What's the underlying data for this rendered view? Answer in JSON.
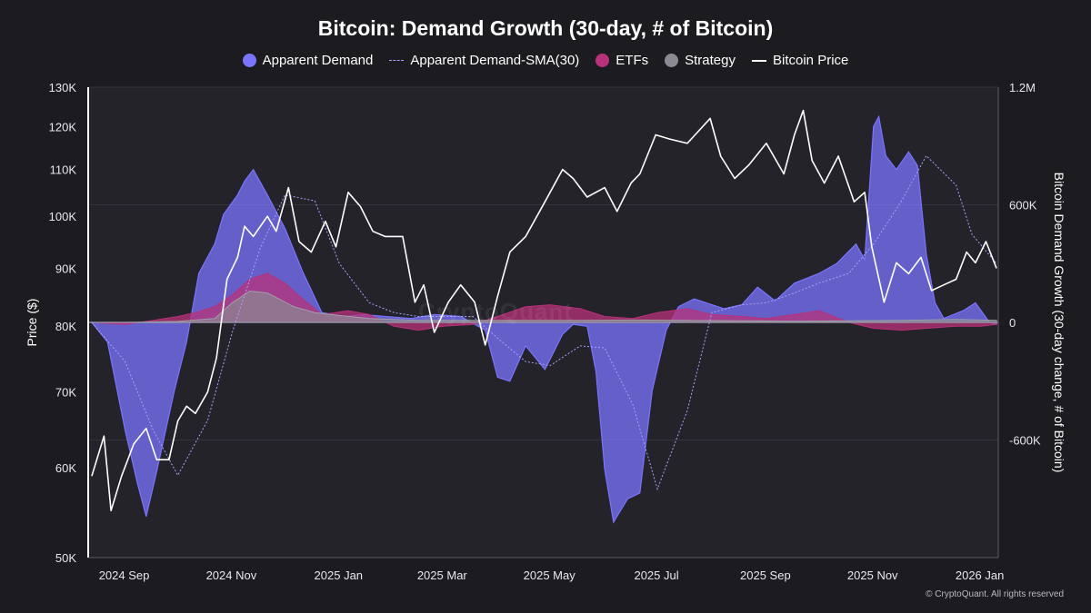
{
  "chart_data": {
    "type": "area",
    "title": "Bitcoin: Demand Growth (30-day, # of Bitcoin)",
    "ylabel_left": "Price ($)",
    "ylabel_right": "Bitcoin Demand Growth (30-day change, # of Bitcoin)",
    "left_axis": {
      "scale": "log",
      "range": [
        50000,
        130000
      ],
      "ticks": [
        50000,
        60000,
        70000,
        80000,
        90000,
        100000,
        110000,
        120000,
        130000
      ],
      "tick_labels": [
        "50K",
        "60K",
        "70K",
        "80K",
        "90K",
        "100K",
        "110K",
        "120K",
        "130K"
      ]
    },
    "right_axis": {
      "scale": "linear",
      "range": [
        -1200000,
        1200000
      ],
      "ticks": [
        -600000,
        0,
        600000,
        1200000
      ],
      "tick_labels": [
        "-600K",
        "0",
        "600K",
        "1.2M"
      ]
    },
    "x_axis": {
      "range": [
        "2024-08-25",
        "2026-01-25"
      ],
      "ticks": [
        "2024-09-01",
        "2024-11-01",
        "2025-01-01",
        "2025-03-01",
        "2025-05-01",
        "2025-07-01",
        "2025-09-01",
        "2025-11-01",
        "2026-01-01"
      ],
      "tick_labels": [
        "2024 Sep",
        "2024 Nov",
        "2025 Jan",
        "2025 Mar",
        "2025 May",
        "2025 Jul",
        "2025 Sep",
        "2025 Nov",
        "2026 Jan"
      ]
    },
    "grid": true,
    "legend_position": "top-center",
    "legend": [
      "Apparent Demand",
      "Apparent Demand-SMA(30)",
      "ETFs",
      "Strategy",
      "Bitcoin Price"
    ],
    "series": [
      {
        "name": "Apparent Demand",
        "axis": "right",
        "style": "area",
        "color": "#7b74ff",
        "x": [
          "2024-08-27",
          "2024-09-05",
          "2024-09-15",
          "2024-09-22",
          "2024-09-27",
          "2024-10-03",
          "2024-10-13",
          "2024-10-20",
          "2024-10-27",
          "2024-11-05",
          "2024-11-10",
          "2024-11-18",
          "2024-11-22",
          "2024-11-27",
          "2024-12-05",
          "2024-12-15",
          "2024-12-25",
          "2025-01-05",
          "2025-01-18",
          "2025-01-28",
          "2025-02-10",
          "2025-02-25",
          "2025-03-10",
          "2025-03-25",
          "2025-04-08",
          "2025-04-15",
          "2025-04-22",
          "2025-05-01",
          "2025-05-12",
          "2025-05-22",
          "2025-05-28",
          "2025-06-05",
          "2025-06-10",
          "2025-06-15",
          "2025-06-20",
          "2025-06-28",
          "2025-07-05",
          "2025-07-12",
          "2025-07-20",
          "2025-07-27",
          "2025-08-05",
          "2025-08-15",
          "2025-08-22",
          "2025-09-01",
          "2025-09-10",
          "2025-09-20",
          "2025-10-01",
          "2025-10-15",
          "2025-10-25",
          "2025-11-05",
          "2025-11-10",
          "2025-11-15",
          "2025-11-18",
          "2025-11-22",
          "2025-11-28",
          "2025-12-05",
          "2025-12-10",
          "2025-12-15",
          "2025-12-20",
          "2025-12-25",
          "2026-01-05",
          "2026-01-12",
          "2026-01-20",
          "2026-01-24"
        ],
        "values": [
          0,
          -100000,
          -550000,
          -820000,
          -990000,
          -760000,
          -350000,
          -100000,
          250000,
          400000,
          550000,
          650000,
          720000,
          780000,
          650000,
          480000,
          260000,
          50000,
          30000,
          40000,
          30000,
          20000,
          40000,
          30000,
          -40000,
          -280000,
          -300000,
          -120000,
          -240000,
          -60000,
          -10000,
          -20000,
          -250000,
          -750000,
          -1020000,
          -900000,
          -870000,
          -350000,
          -40000,
          80000,
          120000,
          90000,
          70000,
          90000,
          180000,
          110000,
          200000,
          250000,
          300000,
          400000,
          320000,
          1000000,
          1050000,
          850000,
          780000,
          870000,
          800000,
          350000,
          100000,
          20000,
          60000,
          100000,
          0,
          -10000
        ]
      },
      {
        "name": "Apparent Demand-SMA(30)",
        "axis": "right",
        "style": "dotted-line",
        "color": "#a7a2ff",
        "x": [
          "2024-08-27",
          "2024-09-15",
          "2024-10-01",
          "2024-10-15",
          "2024-11-01",
          "2024-11-15",
          "2024-12-01",
          "2024-12-15",
          "2025-01-01",
          "2025-01-15",
          "2025-02-01",
          "2025-02-15",
          "2025-03-01",
          "2025-03-15",
          "2025-04-01",
          "2025-04-15",
          "2025-05-01",
          "2025-05-15",
          "2025-06-01",
          "2025-06-15",
          "2025-07-01",
          "2025-07-15",
          "2025-08-01",
          "2025-08-15",
          "2025-09-01",
          "2025-09-15",
          "2025-10-01",
          "2025-10-15",
          "2025-11-01",
          "2025-11-15",
          "2025-12-01",
          "2025-12-15",
          "2026-01-01",
          "2026-01-10",
          "2026-01-24"
        ],
        "values": [
          0,
          -200000,
          -550000,
          -780000,
          -500000,
          -50000,
          380000,
          650000,
          620000,
          300000,
          100000,
          50000,
          30000,
          30000,
          30000,
          -80000,
          -200000,
          -220000,
          -120000,
          -130000,
          -420000,
          -850000,
          -450000,
          50000,
          90000,
          100000,
          150000,
          200000,
          250000,
          400000,
          620000,
          850000,
          700000,
          450000,
          300000
        ]
      },
      {
        "name": "ETFs",
        "axis": "right",
        "style": "area",
        "color": "#b8317a",
        "x": [
          "2024-08-27",
          "2024-09-15",
          "2024-10-01",
          "2024-10-15",
          "2024-10-25",
          "2024-11-05",
          "2024-11-15",
          "2024-11-25",
          "2024-12-05",
          "2024-12-15",
          "2024-12-25",
          "2025-01-05",
          "2025-01-20",
          "2025-02-01",
          "2025-02-15",
          "2025-03-01",
          "2025-03-15",
          "2025-04-01",
          "2025-04-15",
          "2025-05-01",
          "2025-05-15",
          "2025-06-01",
          "2025-06-15",
          "2025-07-01",
          "2025-07-15",
          "2025-08-01",
          "2025-08-15",
          "2025-09-01",
          "2025-09-15",
          "2025-10-01",
          "2025-10-15",
          "2025-11-01",
          "2025-11-15",
          "2025-12-01",
          "2025-12-15",
          "2026-01-01",
          "2026-01-15",
          "2026-01-24"
        ],
        "values": [
          0,
          -10000,
          10000,
          30000,
          50000,
          80000,
          140000,
          220000,
          250000,
          200000,
          120000,
          40000,
          60000,
          40000,
          -20000,
          -40000,
          -20000,
          -10000,
          30000,
          80000,
          90000,
          70000,
          30000,
          20000,
          50000,
          70000,
          40000,
          30000,
          20000,
          40000,
          60000,
          0,
          -30000,
          -40000,
          -30000,
          -20000,
          -20000,
          -10000
        ]
      },
      {
        "name": "Strategy",
        "axis": "right",
        "style": "area",
        "color": "#8a8a92",
        "x": [
          "2024-08-27",
          "2024-09-15",
          "2024-10-15",
          "2024-11-05",
          "2024-11-15",
          "2024-11-25",
          "2024-12-05",
          "2024-12-20",
          "2025-01-01",
          "2025-01-15",
          "2025-02-01",
          "2025-02-15",
          "2025-03-01",
          "2025-04-01",
          "2025-05-01",
          "2025-06-01",
          "2025-07-01",
          "2025-08-01",
          "2025-09-01",
          "2025-10-01",
          "2025-11-01",
          "2025-12-01",
          "2026-01-01",
          "2026-01-24"
        ],
        "values": [
          0,
          0,
          5000,
          20000,
          100000,
          160000,
          150000,
          80000,
          50000,
          35000,
          20000,
          15000,
          10000,
          10000,
          10000,
          10000,
          12000,
          10000,
          8000,
          6000,
          8000,
          10000,
          15000,
          10000
        ]
      },
      {
        "name": "Bitcoin Price",
        "axis": "left",
        "style": "line",
        "color": "#ffffff",
        "x": [
          "2024-08-27",
          "2024-09-03",
          "2024-09-07",
          "2024-09-13",
          "2024-09-20",
          "2024-09-27",
          "2024-10-03",
          "2024-10-10",
          "2024-10-15",
          "2024-10-20",
          "2024-10-25",
          "2024-11-01",
          "2024-11-06",
          "2024-11-12",
          "2024-11-18",
          "2024-11-22",
          "2024-11-27",
          "2024-12-05",
          "2024-12-10",
          "2024-12-17",
          "2024-12-23",
          "2024-12-30",
          "2025-01-07",
          "2025-01-13",
          "2025-01-20",
          "2025-01-27",
          "2025-02-03",
          "2025-02-10",
          "2025-02-20",
          "2025-02-27",
          "2025-03-04",
          "2025-03-10",
          "2025-03-18",
          "2025-03-25",
          "2025-04-02",
          "2025-04-08",
          "2025-04-15",
          "2025-04-22",
          "2025-05-01",
          "2025-05-12",
          "2025-05-22",
          "2025-05-28",
          "2025-06-05",
          "2025-06-15",
          "2025-06-22",
          "2025-06-30",
          "2025-07-05",
          "2025-07-14",
          "2025-07-22",
          "2025-08-01",
          "2025-08-14",
          "2025-08-20",
          "2025-08-28",
          "2025-09-05",
          "2025-09-15",
          "2025-09-25",
          "2025-10-01",
          "2025-10-06",
          "2025-10-11",
          "2025-10-18",
          "2025-10-26",
          "2025-11-04",
          "2025-11-10",
          "2025-11-14",
          "2025-11-21",
          "2025-11-28",
          "2025-12-05",
          "2025-12-12",
          "2025-12-18",
          "2025-12-25",
          "2026-01-01",
          "2026-01-07",
          "2026-01-12",
          "2026-01-18",
          "2026-01-24"
        ],
        "values": [
          59000,
          64000,
          55000,
          59000,
          63000,
          65000,
          61000,
          61000,
          66000,
          68000,
          67000,
          70000,
          75000,
          88000,
          92000,
          98000,
          96000,
          100000,
          97000,
          106000,
          95000,
          93000,
          99000,
          94000,
          105000,
          102000,
          97000,
          96000,
          96000,
          84000,
          87000,
          79000,
          84000,
          87000,
          84000,
          77000,
          85000,
          93000,
          96000,
          103000,
          110000,
          108000,
          104000,
          106000,
          101000,
          107000,
          109000,
          118000,
          117000,
          116000,
          122000,
          113000,
          108000,
          111000,
          116000,
          109000,
          118000,
          124000,
          112000,
          107000,
          113000,
          103000,
          105000,
          94000,
          84000,
          91000,
          89000,
          92000,
          86000,
          87000,
          88000,
          93000,
          91000,
          95000,
          90000
        ]
      }
    ]
  },
  "copyright": "© CryptoQuant. All rights reserved",
  "watermark": "CryptoQuant"
}
